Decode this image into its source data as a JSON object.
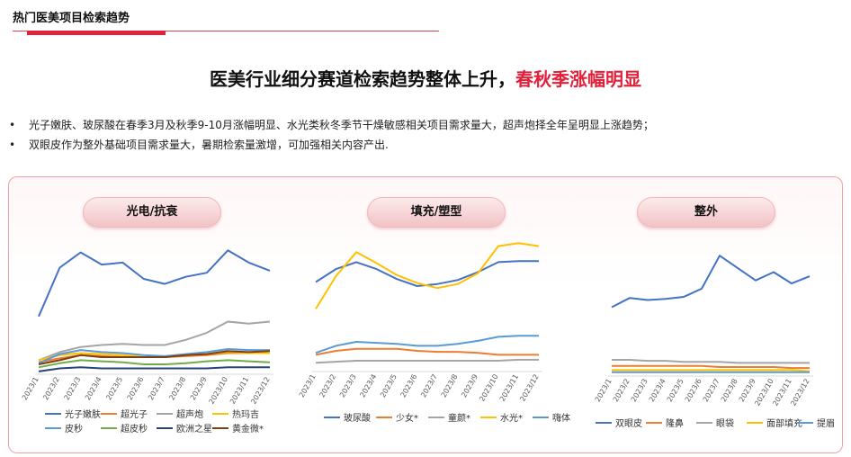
{
  "header": {
    "section_title": "热门医美项目检索趋势",
    "headline_main": "医美行业细分赛道检索趋势整体上升，",
    "headline_highlight": "春秋季涨幅明显"
  },
  "bullets": [
    "光子嫩肤、玻尿酸在春季3月及秋季9-10月涨幅明显、水光类秋冬季节干燥敏感相关项目需求量大，超声炮择全年呈明显上涨趋势；",
    "双眼皮作为整外基础项目需求量大，暑期检索量激增，可加强相关内容产出."
  ],
  "bullet_symbol": "•",
  "chart_data": [
    {
      "type": "line",
      "title": "光电/抗衰",
      "categories": [
        "2023/1",
        "2023/2",
        "2023/3",
        "2023/4",
        "2023/5",
        "2023/6",
        "2023/7",
        "2023/8",
        "2023/9",
        "2023/10",
        "2023/11",
        "2023/12"
      ],
      "x_tick_labels": [
        "2023/1",
        "2023/2",
        "2023/3",
        "2023/4",
        "2023/5",
        "2023/6",
        "2023/7",
        "2023/8",
        "2023/9",
        "2023/10",
        "2023/11",
        "2023/12"
      ],
      "ylim": [
        0,
        130
      ],
      "series": [
        {
          "name": "光子嫩肤",
          "color": "#4472c4",
          "values": [
            55,
            103,
            118,
            106,
            108,
            92,
            87,
            94,
            98,
            120,
            108,
            100
          ]
        },
        {
          "name": "超光子",
          "color": "#ed7d31",
          "values": [
            10,
            14,
            17,
            16,
            15,
            15,
            15,
            16,
            17,
            19,
            19,
            19
          ]
        },
        {
          "name": "超声炮",
          "color": "#a5a5a5",
          "values": [
            12,
            20,
            25,
            27,
            28,
            27,
            27,
            32,
            39,
            50,
            48,
            50
          ]
        },
        {
          "name": "热玛吉",
          "color": "#ffc000",
          "values": [
            12,
            17,
            19,
            18,
            17,
            15,
            16,
            17,
            18,
            20,
            19,
            19
          ]
        },
        {
          "name": "皮秒",
          "color": "#5b9bd5",
          "values": [
            9,
            18,
            22,
            20,
            19,
            17,
            16,
            18,
            20,
            23,
            22,
            22
          ]
        },
        {
          "name": "超皮秒",
          "color": "#70ad47",
          "values": [
            5,
            9,
            12,
            11,
            10,
            8,
            8,
            9,
            11,
            12,
            11,
            10
          ]
        },
        {
          "name": "欧洲之星",
          "color": "#264478",
          "values": [
            1,
            4,
            5,
            4,
            4,
            4,
            4,
            4,
            4,
            5,
            5,
            5
          ]
        },
        {
          "name": "黄金微*",
          "color": "#7f3f0f",
          "values": [
            8,
            12,
            17,
            15,
            15,
            15,
            15,
            17,
            18,
            21,
            20,
            21
          ]
        }
      ]
    },
    {
      "type": "line",
      "title": "填充/塑型",
      "categories": [
        "2023/1",
        "2023/2",
        "2023/3",
        "2023/4",
        "2023/5",
        "2023/6",
        "2023/7",
        "2023/8",
        "2023/9",
        "2023/10",
        "2023/11",
        "2023/12"
      ],
      "x_tick_labels": [
        "2023/1",
        "2023/2",
        "2023/3",
        "2023/4",
        "2023/5",
        "2023/6",
        "2023/7",
        "2023/8",
        "2023/9",
        "2023/10",
        "2023/11",
        "2023/12"
      ],
      "ylim": [
        0,
        130
      ],
      "series": [
        {
          "name": "玻尿酸",
          "color": "#4472c4",
          "values": [
            88,
            101,
            108,
            101,
            91,
            84,
            86,
            90,
            98,
            108,
            109,
            109
          ]
        },
        {
          "name": "少女*",
          "color": "#ed7d31",
          "values": [
            15,
            19,
            21,
            21,
            21,
            19,
            18,
            18,
            17,
            15,
            15,
            15
          ]
        },
        {
          "name": "童颜*",
          "color": "#a5a5a5",
          "values": [
            7,
            8,
            9,
            9,
            9,
            9,
            9,
            9,
            9,
            9,
            10,
            10
          ]
        },
        {
          "name": "水光*",
          "color": "#ffc000",
          "values": [
            61,
            94,
            118,
            107,
            95,
            87,
            82,
            86,
            97,
            124,
            127,
            124
          ]
        },
        {
          "name": "嗨体",
          "color": "#5b9bd5",
          "values": [
            17,
            24,
            28,
            27,
            26,
            24,
            24,
            26,
            29,
            33,
            34,
            34
          ]
        }
      ]
    },
    {
      "type": "line",
      "title": "整外",
      "categories": [
        "2023/1",
        "2023/2",
        "2023/3",
        "2023/4",
        "2023/5",
        "2023/6",
        "2023/7",
        "2023/8",
        "2023/9",
        "2023/10",
        "2023/11",
        "2023/12"
      ],
      "x_tick_labels": [
        "2023/1",
        "2023/2",
        "2023/3",
        "2023/4",
        "2023/5",
        "2023/6",
        "2023/7",
        "2023/8",
        "2023/9",
        "2023/10",
        "2023/11",
        "2023/12"
      ],
      "ylim": [
        0,
        130
      ],
      "series": [
        {
          "name": "双眼皮",
          "color": "#4472c4",
          "values": [
            65,
            74,
            72,
            73,
            75,
            83,
            115,
            103,
            91,
            99,
            88,
            95
          ]
        },
        {
          "name": "隆鼻",
          "color": "#ed7d31",
          "values": [
            8,
            8,
            8,
            8,
            8,
            8,
            7,
            7,
            7,
            7,
            6,
            6
          ]
        },
        {
          "name": "眼袋",
          "color": "#a5a5a5",
          "values": [
            14,
            14,
            13,
            13,
            12,
            12,
            12,
            11,
            11,
            11,
            11,
            11
          ]
        },
        {
          "name": "面部填充",
          "color": "#ffc000",
          "values": [
            4,
            4,
            4,
            4,
            4,
            4,
            4,
            4,
            4,
            4,
            4,
            3
          ]
        },
        {
          "name": "提眉",
          "color": "#5b9bd5",
          "values": [
            2,
            2,
            2,
            2,
            2,
            2,
            2,
            2,
            2,
            2,
            2,
            2
          ]
        }
      ]
    }
  ]
}
